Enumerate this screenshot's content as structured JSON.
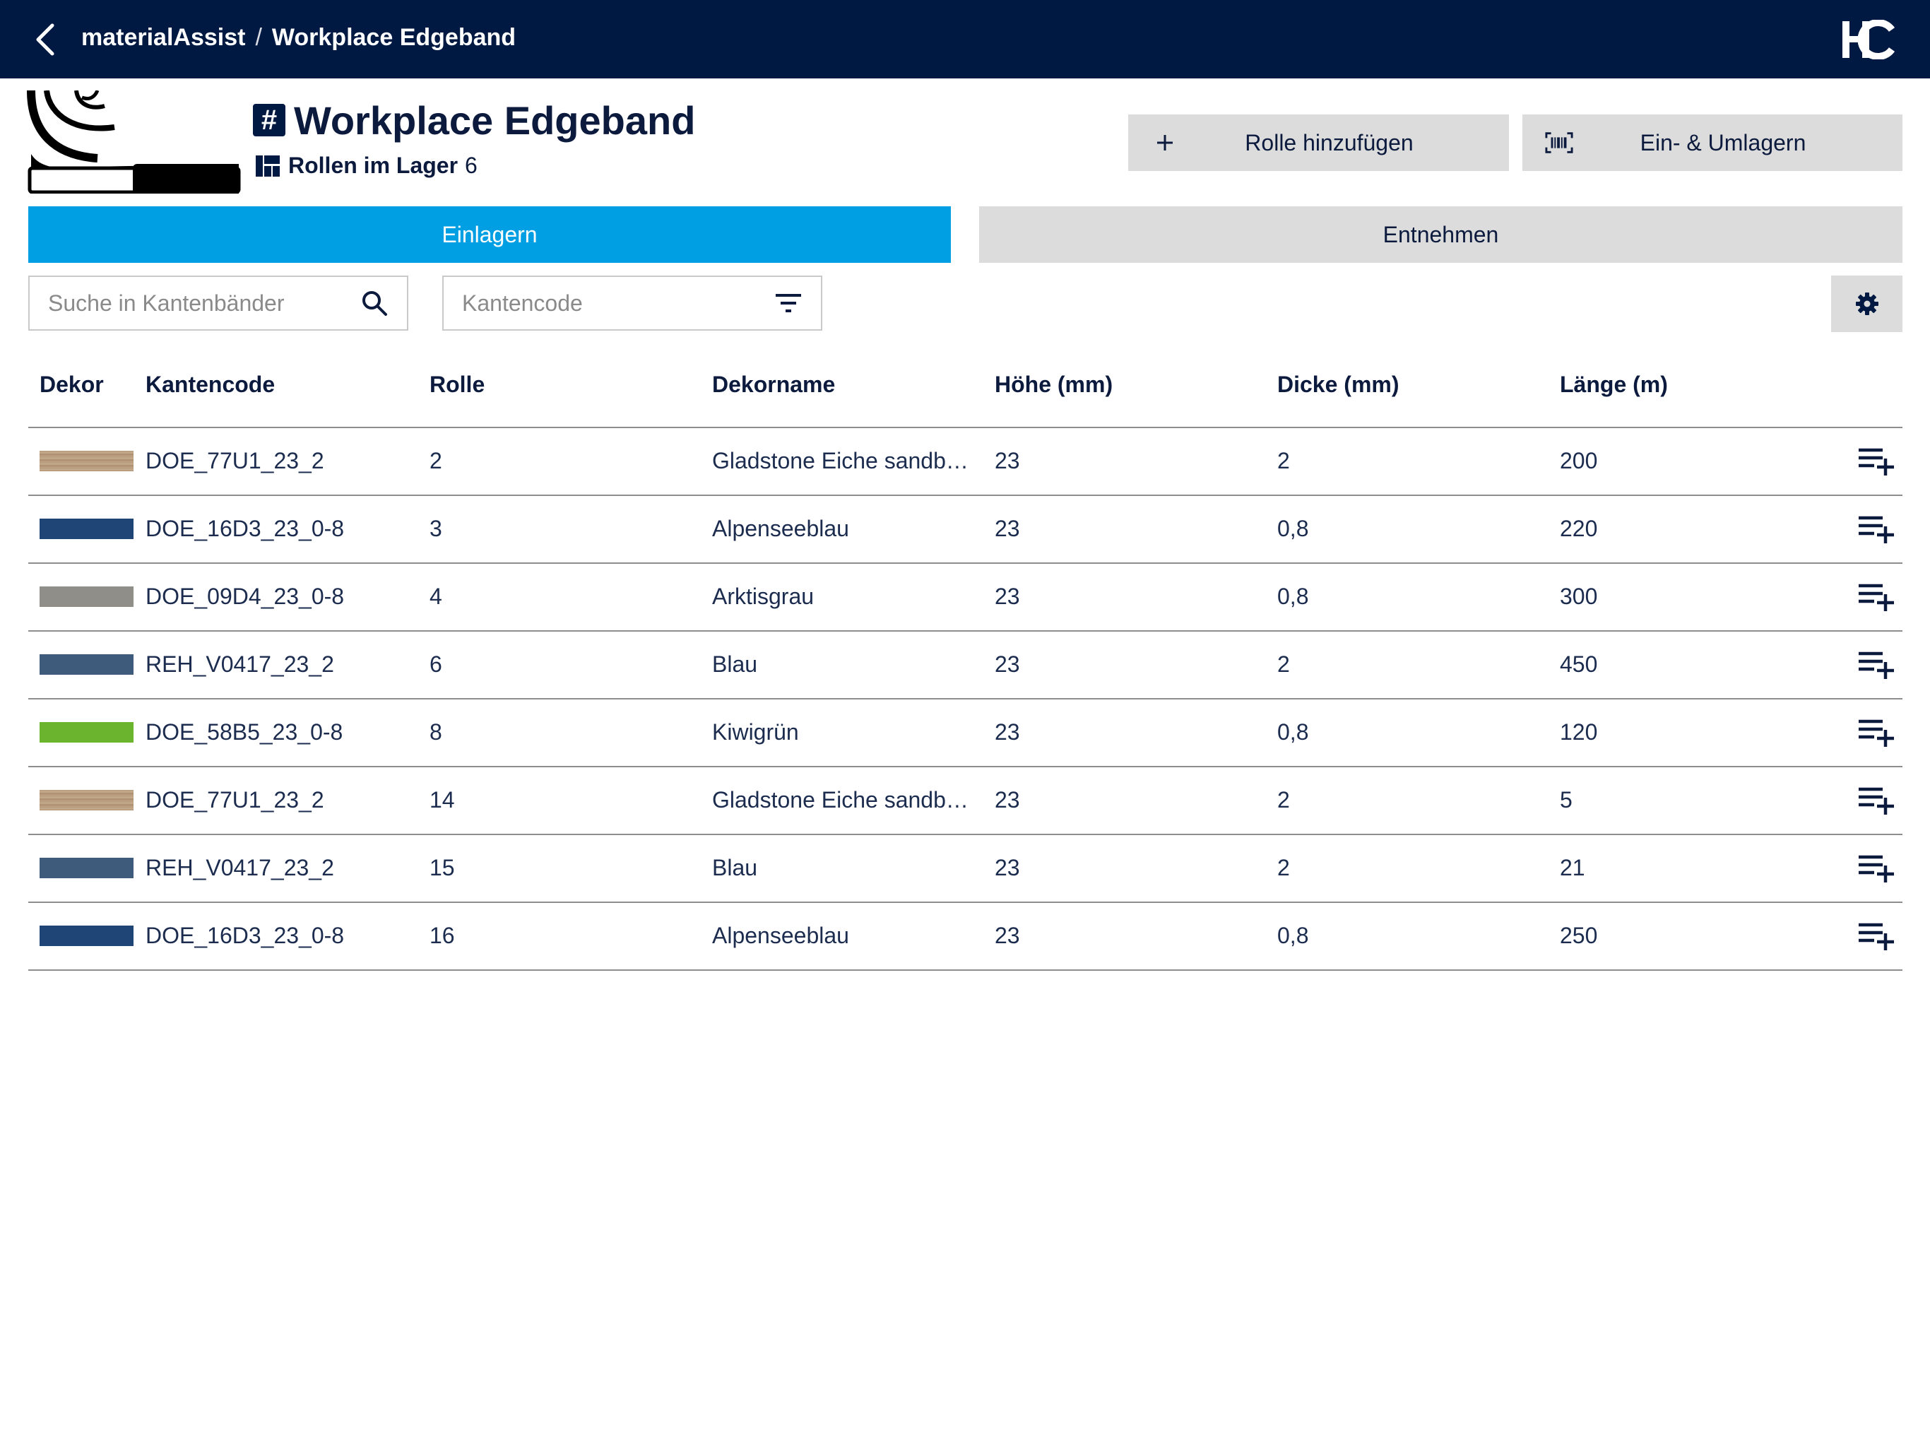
{
  "appbar": {
    "root": "materialAssist",
    "separator": "/",
    "current": "Workplace Edgeband",
    "logo_text": "HC"
  },
  "header": {
    "title": "Workplace Edgeband",
    "title_icon": "hash-icon",
    "stock_label": "Rollen im Lager",
    "stock_count": "6",
    "stock_icon": "warehouse-icon"
  },
  "actions": {
    "add_roll": "Rolle hinzufügen",
    "add_roll_icon": "plus-icon",
    "move": "Ein- & Umlagern",
    "move_icon": "barcode-scan-icon"
  },
  "tabs": {
    "active": "Einlagern",
    "inactive": "Entnehmen"
  },
  "filters": {
    "search_placeholder": "Suche in Kantenbänder",
    "code_placeholder": "Kantencode"
  },
  "table": {
    "headers": {
      "dekor": "Dekor",
      "kantencode": "Kantencode",
      "rolle": "Rolle",
      "dekorname": "Dekorname",
      "hoehe": "Höhe (mm)",
      "dicke": "Dicke (mm)",
      "laenge": "Länge (m)"
    },
    "rows": [
      {
        "swatch": "wood",
        "code": "DOE_77U1_23_2",
        "rolle": "2",
        "name": "Gladstone Eiche sandbeige",
        "hoehe": "23",
        "dicke": "2",
        "laenge": "200"
      },
      {
        "swatch": "#1f4577",
        "code": "DOE_16D3_23_0-8",
        "rolle": "3",
        "name": "Alpenseeblau",
        "hoehe": "23",
        "dicke": "0,8",
        "laenge": "220"
      },
      {
        "swatch": "#8f8e89",
        "code": "DOE_09D4_23_0-8",
        "rolle": "4",
        "name": "Arktisgrau",
        "hoehe": "23",
        "dicke": "0,8",
        "laenge": "300"
      },
      {
        "swatch": "#3f5b7c",
        "code": "REH_V0417_23_2",
        "rolle": "6",
        "name": "Blau",
        "hoehe": "23",
        "dicke": "2",
        "laenge": "450"
      },
      {
        "swatch": "#6bb52e",
        "code": "DOE_58B5_23_0-8",
        "rolle": "8",
        "name": "Kiwigrün",
        "hoehe": "23",
        "dicke": "0,8",
        "laenge": "120"
      },
      {
        "swatch": "wood",
        "code": "DOE_77U1_23_2",
        "rolle": "14",
        "name": "Gladstone Eiche sandbeige",
        "hoehe": "23",
        "dicke": "2",
        "laenge": "5"
      },
      {
        "swatch": "#3f5b7c",
        "code": "REH_V0417_23_2",
        "rolle": "15",
        "name": "Blau",
        "hoehe": "23",
        "dicke": "2",
        "laenge": "21"
      },
      {
        "swatch": "#1f4577",
        "code": "DOE_16D3_23_0-8",
        "rolle": "16",
        "name": "Alpenseeblau",
        "hoehe": "23",
        "dicke": "0,8",
        "laenge": "250"
      }
    ],
    "row_action_icon": "playlist-add-icon"
  },
  "colors": {
    "appbar": "#001942",
    "accent": "#009fe3",
    "button_gray": "#dcdcdc",
    "text": "#0b1a3d"
  }
}
